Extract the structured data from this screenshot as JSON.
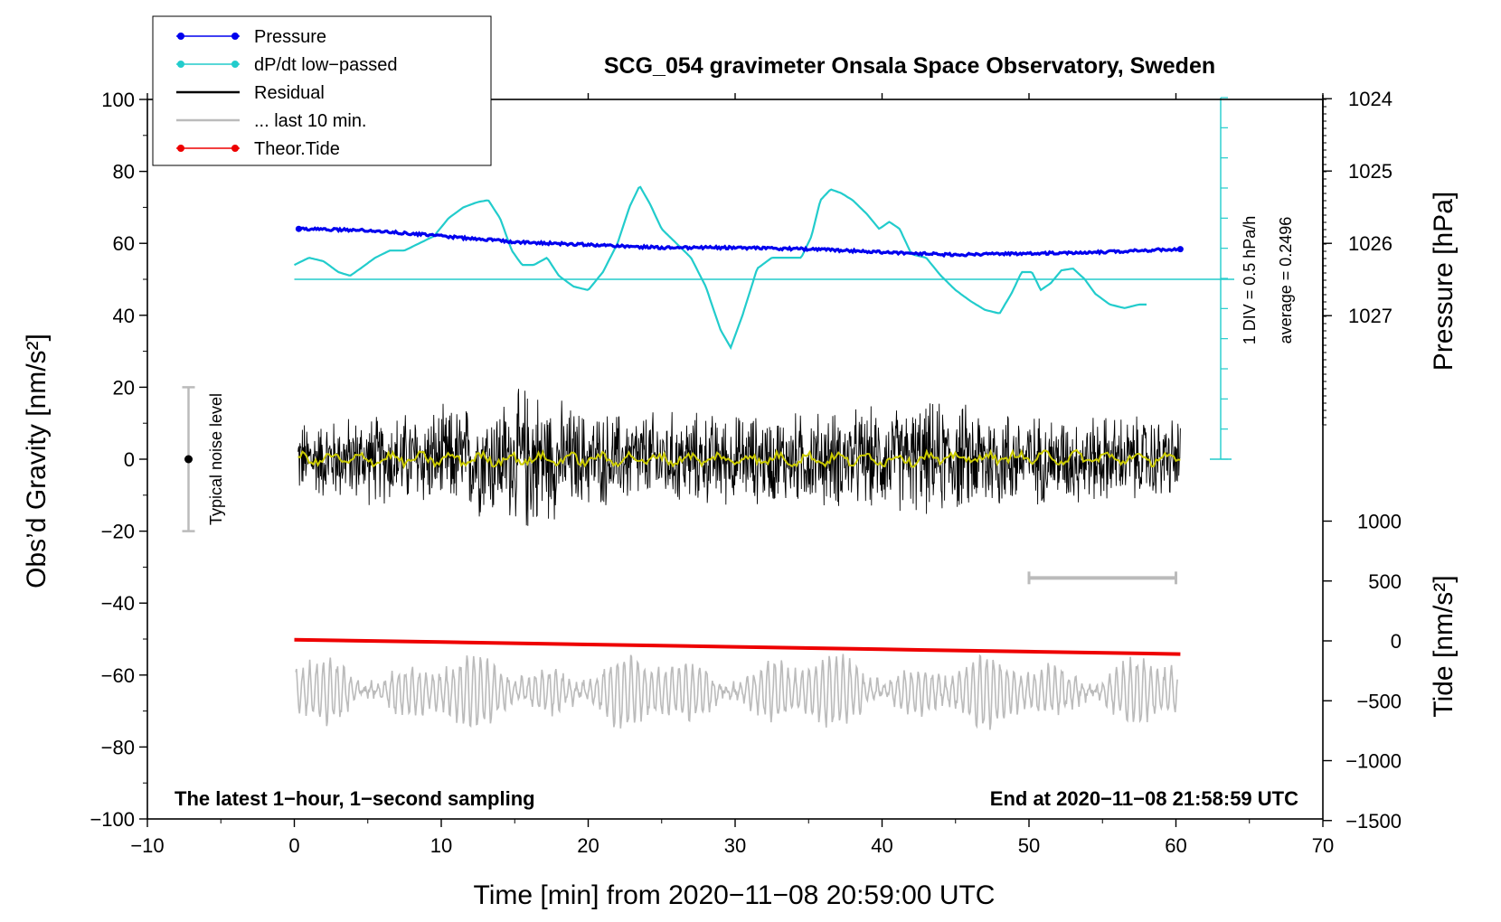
{
  "chart_data": {
    "type": "line",
    "title": "SCG_054 gravimeter Onsala Space Observatory, Sweden",
    "xlabel": "Time [min] from 2020−11−08 20:59:00 UTC",
    "ylabel_left": "Obs’d Gravity [nm/s²]",
    "ylabel_right_pressure": "Pressure [hPa]",
    "ylabel_right_tide": "Tide [nm/s²]",
    "xlim": [
      -10,
      70
    ],
    "ylim": [
      -100,
      100
    ],
    "x_ticks": [
      "−10",
      "0",
      "10",
      "20",
      "30",
      "40",
      "50",
      "60",
      "70"
    ],
    "x_tick_values": [
      -10,
      0,
      10,
      20,
      30,
      40,
      50,
      60,
      70
    ],
    "y_ticks": [
      "100",
      "80",
      "60",
      "40",
      "20",
      "0",
      "−20",
      "−40",
      "−60",
      "−80",
      "−100"
    ],
    "y_tick_values": [
      100,
      80,
      60,
      40,
      20,
      0,
      -20,
      -40,
      -60,
      -80,
      -100
    ],
    "pressure_ticks": [
      "1027",
      "1026",
      "1025",
      "1024"
    ],
    "pressure_tick_values": [
      1027,
      1026,
      1025,
      1024
    ],
    "tide_ticks": [
      "1000",
      "500",
      "0",
      "−500",
      "−1000",
      "−1500"
    ],
    "tide_tick_values": [
      1000,
      500,
      0,
      -500,
      -1000,
      -1500
    ],
    "legend": [
      {
        "label": "Pressure",
        "color": "#0000ee",
        "marker": true
      },
      {
        "label": "dP/dt low−passed",
        "color": "#22cccc",
        "marker": true
      },
      {
        "label": "Residual",
        "color": "#000000",
        "marker": false
      },
      {
        "label": "... last 10 min.",
        "color": "#bbbbbb",
        "marker": false
      },
      {
        "label": "Theor.Tide",
        "color": "#ee0000",
        "marker": true
      }
    ],
    "annotations": {
      "left_bottom": "The latest 1−hour, 1−second sampling",
      "right_bottom": "End at 2020−11−08 21:58:59 UTC",
      "noise_label": "Typical noise level",
      "div_label": "1 DIV = 0.5 hPa/h",
      "average_label": "average = 0.2496"
    },
    "noise_bar": {
      "x": -7.2,
      "center": 0,
      "half_range": 20
    },
    "last10_bar": {
      "x_start": 50,
      "x_end": 60,
      "y": -33
    },
    "series": [
      {
        "name": "Pressure",
        "units": "hPa",
        "color": "#0000ee",
        "x": [
          0.3,
          5,
          10,
          15,
          20,
          25,
          30,
          35,
          40,
          45,
          50,
          55,
          60.3
        ],
        "values": [
          1025.8,
          1025.82,
          1025.9,
          1025.98,
          1026.02,
          1026.06,
          1026.06,
          1026.08,
          1026.12,
          1026.16,
          1026.14,
          1026.12,
          1026.08
        ]
      },
      {
        "name": "dP/dt low−passed",
        "units": "nm/s² axis",
        "color": "#22cccc",
        "baseline": 50,
        "x": [
          0,
          1,
          2,
          3,
          3.8,
          4.5,
          5.5,
          6.5,
          7.5,
          8.5,
          9.5,
          10.5,
          11.5,
          12.5,
          13.2,
          14,
          14.8,
          15.5,
          16.3,
          17.2,
          18,
          19,
          20,
          21,
          22,
          22.8,
          23.5,
          24.2,
          25,
          26,
          27,
          28,
          29,
          29.7,
          30.5,
          31.5,
          32.5,
          33.5,
          34.5,
          35.2,
          35.8,
          36.5,
          37.2,
          38,
          39,
          39.8,
          40.5,
          41.2,
          42,
          43,
          44,
          45,
          46,
          47,
          48,
          48.8,
          49.5,
          50.2,
          50.8,
          51.5,
          52.2,
          53,
          53.8,
          54.5,
          55.5,
          56.5,
          57.5,
          58
        ],
        "values": [
          54,
          56,
          55,
          52,
          51,
          53,
          56,
          58,
          58,
          60,
          62,
          67,
          70,
          71.5,
          72,
          67,
          58,
          54,
          54,
          56,
          51,
          48,
          47,
          52,
          60,
          70,
          76,
          71,
          64,
          60,
          56,
          48,
          36,
          31,
          40,
          53,
          56,
          56,
          56,
          62,
          72,
          75,
          74,
          72,
          68,
          64,
          66,
          64,
          57,
          56,
          51,
          47,
          44,
          41.5,
          40.5,
          46,
          52,
          52,
          47,
          49,
          52.5,
          53,
          50,
          46,
          43,
          42,
          43,
          43
        ]
      },
      {
        "name": "Residual",
        "units": "nm/s²",
        "color": "#000000",
        "x": [
          0,
          5,
          10,
          15,
          16,
          17,
          20,
          25,
          30,
          35,
          40,
          44,
          45,
          47.5,
          50,
          55,
          60.3
        ],
        "envelope": [
          12,
          14,
          16,
          20,
          25,
          20,
          15,
          15,
          14,
          15,
          16,
          18,
          17,
          18,
          14,
          14,
          13
        ]
      },
      {
        "name": "Residual smoothed",
        "units": "nm/s²",
        "color": "#cccc00",
        "x": [
          0,
          10,
          20,
          30,
          40,
          50,
          60.3
        ],
        "values": [
          0,
          0,
          0,
          0,
          0,
          0.5,
          0
        ]
      },
      {
        "name": "... last 10 min.",
        "units": "nm/s²",
        "color": "#bbbbbb",
        "x": [
          0,
          60
        ],
        "center": -63,
        "amplitude": 10
      },
      {
        "name": "Theor.Tide",
        "units": "nm/s² tide axis",
        "color": "#ee0000",
        "x": [
          0,
          10,
          20,
          30,
          40,
          50,
          60.3
        ],
        "values": [
          10,
          -10,
          -30,
          -50,
          -70,
          -90,
          -110
        ]
      }
    ]
  }
}
